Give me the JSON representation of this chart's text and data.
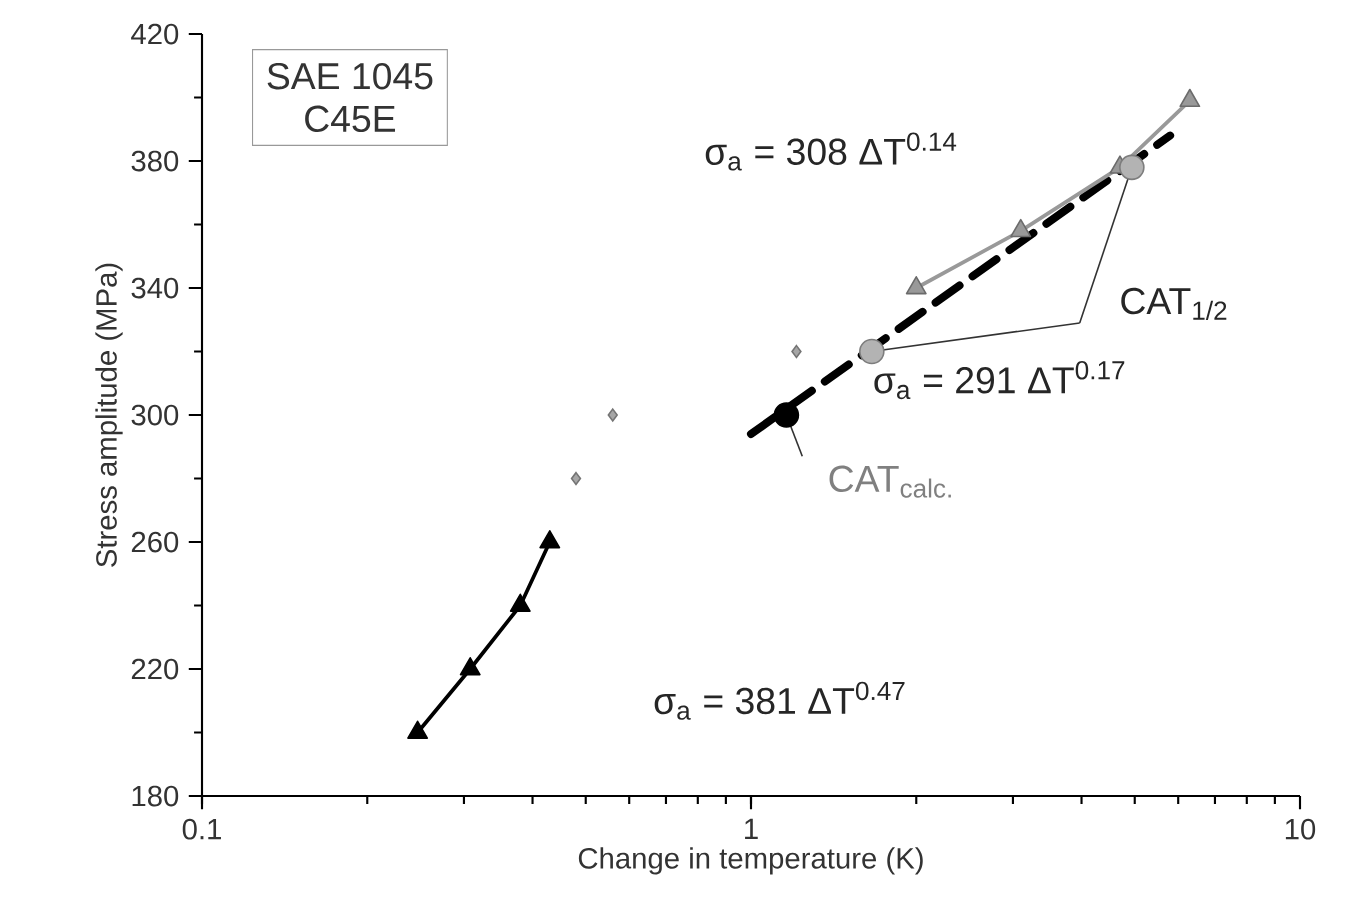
{
  "chart_data": {
    "type": "scatter",
    "xlabel": "Change in temperature (K)",
    "ylabel": "Stress amplitude (MPa)",
    "log": "x",
    "xlim": [
      0.1,
      10
    ],
    "xticks": [
      0.1,
      1,
      10
    ],
    "ylim": [
      180,
      420
    ],
    "yticks": [
      180,
      220,
      260,
      300,
      340,
      380,
      420
    ],
    "series": [
      {
        "type": "line",
        "x": [
          0.247,
          0.308,
          0.38,
          0.43
        ],
        "values": [
          200,
          220,
          240,
          260
        ],
        "color": "#000000",
        "marker": "triangle",
        "line_style": "solid"
      },
      {
        "x": [
          0.48,
          0.56,
          1.21
        ],
        "values": [
          280,
          300,
          320
        ],
        "color": "#a6a6a6",
        "marker": "diamond"
      },
      {
        "type": "line",
        "x": [
          1.0,
          5.8
        ],
        "values": [
          294,
          388
        ],
        "color": "#000000",
        "marker": "none",
        "line_style": "dashed"
      },
      {
        "type": "line",
        "x": [
          2,
          3.1,
          4.7,
          6.3
        ],
        "values": [
          340,
          358,
          378,
          399
        ],
        "color": "#999999",
        "marker": "triangle",
        "line_style": "solid"
      },
      {
        "x": [
          1.16
        ],
        "values": [
          300
        ],
        "color": "#000000",
        "marker": "circle"
      },
      {
        "x": [
          1.66,
          4.94
        ],
        "values": [
          320,
          378
        ],
        "color": "#b3b3b3",
        "marker": "circle"
      }
    ],
    "annotations": [
      "SAE 1045",
      "C45E",
      "σ$_{a}$ = 308 ΔT$^{0.14}$",
      "σ$_{a}$ = 291 ΔT$^{0.17}$",
      "σ$_{a}$ = 381 ΔT$^{0.47}$",
      {
        "text": "CAT$_{1/2}$",
        "x": 4.94,
        "y": 378
      },
      {
        "text": "CAT$_{calc.}$",
        "x": 1.16,
        "y": 300
      }
    ]
  }
}
